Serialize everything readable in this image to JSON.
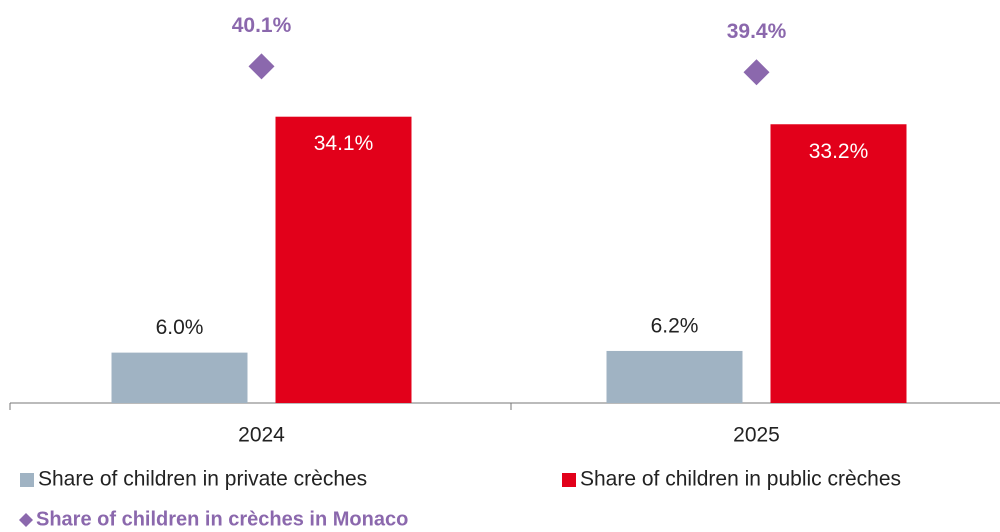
{
  "chart_data": {
    "type": "bar",
    "categories": [
      "2024",
      "2025"
    ],
    "ylim": [
      0,
      48
    ],
    "series": [
      {
        "name": "Share of children in private crèches",
        "color": "#a0b3c3",
        "values": [
          6.0,
          6.2
        ],
        "value_labels": [
          "6.0%",
          "6.2%"
        ]
      },
      {
        "name": "Share of children in public crèches",
        "color": "#e2001a",
        "values": [
          34.1,
          33.2
        ],
        "value_labels": [
          "34.1%",
          "33.2%"
        ]
      },
      {
        "name": "Share of children in crèches in Monaco",
        "color": "#8b68ad",
        "marker": "diamond",
        "values": [
          40.1,
          39.4
        ],
        "value_labels": [
          "40.1%",
          "39.4%"
        ]
      }
    ]
  }
}
